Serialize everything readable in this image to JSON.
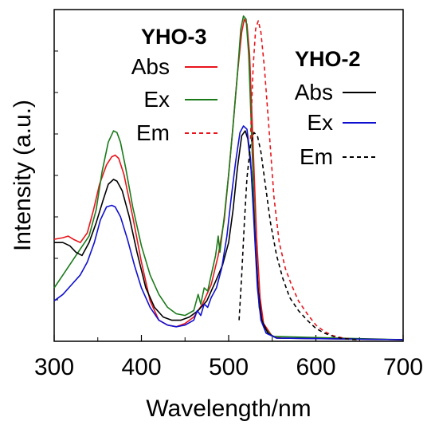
{
  "chart_data": {
    "type": "line",
    "xlabel": "Wavelength/nm",
    "ylabel": "Intensity (a.u.)",
    "xlim": [
      300,
      700
    ],
    "ylim": [
      0,
      1.0
    ],
    "x_ticks": [
      "300",
      "400",
      "500",
      "600",
      "700"
    ],
    "y_ticks_labeled": false,
    "grid": false,
    "legends": [
      {
        "title": "YHO-3",
        "entries": [
          {
            "label": "Abs",
            "color": "#e8141b",
            "dash": "solid"
          },
          {
            "label": "Ex",
            "color": "#1a7a1a",
            "dash": "solid"
          },
          {
            "label": "Em",
            "color": "#e8141b",
            "dash": "dashed"
          }
        ]
      },
      {
        "title": "YHO-2",
        "entries": [
          {
            "label": "Abs",
            "color": "#000000",
            "dash": "solid"
          },
          {
            "label": "Ex",
            "color": "#1010d0",
            "dash": "solid"
          },
          {
            "label": "Em",
            "color": "#000000",
            "dash": "dashed"
          }
        ]
      }
    ],
    "series": [
      {
        "group": "YHO-3",
        "kind": "Abs",
        "color": "#e8141b",
        "dash": "solid",
        "points": [
          [
            300,
            0.31
          ],
          [
            310,
            0.315
          ],
          [
            316,
            0.32
          ],
          [
            322,
            0.31
          ],
          [
            330,
            0.3
          ],
          [
            338,
            0.33
          ],
          [
            345,
            0.4
          ],
          [
            352,
            0.48
          ],
          [
            360,
            0.54
          ],
          [
            366,
            0.565
          ],
          [
            370,
            0.57
          ],
          [
            374,
            0.56
          ],
          [
            380,
            0.51
          ],
          [
            390,
            0.38
          ],
          [
            400,
            0.24
          ],
          [
            410,
            0.12
          ],
          [
            420,
            0.06
          ],
          [
            430,
            0.045
          ],
          [
            440,
            0.04
          ],
          [
            450,
            0.05
          ],
          [
            460,
            0.07
          ],
          [
            470,
            0.11
          ],
          [
            480,
            0.17
          ],
          [
            488,
            0.26
          ],
          [
            495,
            0.37
          ],
          [
            500,
            0.51
          ],
          [
            505,
            0.66
          ],
          [
            510,
            0.82
          ],
          [
            515,
            0.95
          ],
          [
            518,
            0.99
          ],
          [
            521,
            0.975
          ],
          [
            524,
            0.88
          ],
          [
            528,
            0.6
          ],
          [
            532,
            0.32
          ],
          [
            536,
            0.13
          ],
          [
            540,
            0.05
          ],
          [
            550,
            0.01
          ],
          [
            560,
            0.005
          ],
          [
            700,
            0.0
          ]
        ]
      },
      {
        "group": "YHO-3",
        "kind": "Ex",
        "color": "#1a7a1a",
        "dash": "solid",
        "points": [
          [
            300,
            0.16
          ],
          [
            310,
            0.2
          ],
          [
            320,
            0.24
          ],
          [
            330,
            0.28
          ],
          [
            340,
            0.32
          ],
          [
            348,
            0.4
          ],
          [
            355,
            0.52
          ],
          [
            362,
            0.61
          ],
          [
            368,
            0.645
          ],
          [
            372,
            0.64
          ],
          [
            376,
            0.61
          ],
          [
            382,
            0.53
          ],
          [
            390,
            0.41
          ],
          [
            400,
            0.29
          ],
          [
            410,
            0.2
          ],
          [
            420,
            0.14
          ],
          [
            430,
            0.1
          ],
          [
            440,
            0.08
          ],
          [
            450,
            0.075
          ],
          [
            460,
            0.09
          ],
          [
            465,
            0.14
          ],
          [
            468,
            0.11
          ],
          [
            472,
            0.16
          ],
          [
            476,
            0.15
          ],
          [
            480,
            0.2
          ],
          [
            485,
            0.26
          ],
          [
            488,
            0.32
          ],
          [
            490,
            0.27
          ],
          [
            495,
            0.38
          ],
          [
            500,
            0.51
          ],
          [
            505,
            0.66
          ],
          [
            510,
            0.82
          ],
          [
            514,
            0.96
          ],
          [
            517,
            1.0
          ],
          [
            520,
            0.99
          ],
          [
            523,
            0.88
          ],
          [
            527,
            0.58
          ],
          [
            531,
            0.28
          ],
          [
            535,
            0.1
          ],
          [
            540,
            0.04
          ],
          [
            550,
            0.01
          ],
          [
            700,
            0.0
          ]
        ]
      },
      {
        "group": "YHO-3",
        "kind": "Em",
        "color": "#e8141b",
        "dash": "dashed",
        "points": [
          [
            525,
            0.62
          ],
          [
            528,
            0.84
          ],
          [
            531,
            0.96
          ],
          [
            534,
            0.985
          ],
          [
            537,
            0.95
          ],
          [
            541,
            0.84
          ],
          [
            546,
            0.66
          ],
          [
            552,
            0.44
          ],
          [
            558,
            0.3
          ],
          [
            565,
            0.22
          ],
          [
            572,
            0.17
          ],
          [
            580,
            0.12
          ],
          [
            590,
            0.08
          ],
          [
            600,
            0.045
          ],
          [
            610,
            0.025
          ],
          [
            620,
            0.012
          ],
          [
            630,
            0.006
          ],
          [
            640,
            0.002
          ],
          [
            650,
            0.0
          ]
        ]
      },
      {
        "group": "YHO-2",
        "kind": "Abs",
        "color": "#000000",
        "dash": "solid",
        "points": [
          [
            300,
            0.3
          ],
          [
            310,
            0.3
          ],
          [
            318,
            0.29
          ],
          [
            325,
            0.27
          ],
          [
            332,
            0.26
          ],
          [
            340,
            0.3
          ],
          [
            348,
            0.36
          ],
          [
            356,
            0.43
          ],
          [
            362,
            0.48
          ],
          [
            368,
            0.495
          ],
          [
            372,
            0.49
          ],
          [
            378,
            0.46
          ],
          [
            386,
            0.38
          ],
          [
            395,
            0.27
          ],
          [
            405,
            0.16
          ],
          [
            415,
            0.1
          ],
          [
            425,
            0.07
          ],
          [
            435,
            0.06
          ],
          [
            445,
            0.06
          ],
          [
            455,
            0.07
          ],
          [
            465,
            0.09
          ],
          [
            475,
            0.12
          ],
          [
            485,
            0.18
          ],
          [
            493,
            0.23
          ],
          [
            500,
            0.3
          ],
          [
            505,
            0.4
          ],
          [
            510,
            0.53
          ],
          [
            515,
            0.63
          ],
          [
            519,
            0.645
          ],
          [
            522,
            0.62
          ],
          [
            526,
            0.52
          ],
          [
            530,
            0.33
          ],
          [
            534,
            0.15
          ],
          [
            538,
            0.06
          ],
          [
            545,
            0.02
          ],
          [
            555,
            0.005
          ],
          [
            700,
            0.0
          ]
        ]
      },
      {
        "group": "YHO-2",
        "kind": "Ex",
        "color": "#1010d0",
        "dash": "solid",
        "points": [
          [
            300,
            0.12
          ],
          [
            310,
            0.14
          ],
          [
            320,
            0.17
          ],
          [
            330,
            0.2
          ],
          [
            338,
            0.24
          ],
          [
            346,
            0.3
          ],
          [
            353,
            0.37
          ],
          [
            360,
            0.41
          ],
          [
            366,
            0.415
          ],
          [
            370,
            0.41
          ],
          [
            376,
            0.38
          ],
          [
            384,
            0.31
          ],
          [
            392,
            0.23
          ],
          [
            400,
            0.16
          ],
          [
            410,
            0.1
          ],
          [
            420,
            0.06
          ],
          [
            430,
            0.045
          ],
          [
            440,
            0.04
          ],
          [
            450,
            0.045
          ],
          [
            460,
            0.06
          ],
          [
            464,
            0.09
          ],
          [
            468,
            0.075
          ],
          [
            472,
            0.11
          ],
          [
            476,
            0.1
          ],
          [
            480,
            0.13
          ],
          [
            486,
            0.16
          ],
          [
            492,
            0.22
          ],
          [
            498,
            0.32
          ],
          [
            503,
            0.44
          ],
          [
            508,
            0.55
          ],
          [
            513,
            0.64
          ],
          [
            517,
            0.66
          ],
          [
            521,
            0.65
          ],
          [
            525,
            0.56
          ],
          [
            529,
            0.36
          ],
          [
            533,
            0.16
          ],
          [
            537,
            0.06
          ],
          [
            543,
            0.02
          ],
          [
            555,
            0.005
          ],
          [
            700,
            0.0
          ]
        ]
      },
      {
        "group": "YHO-2",
        "kind": "Em",
        "color": "#000000",
        "dash": "dashed",
        "points": [
          [
            512,
            0.06
          ],
          [
            515,
            0.2
          ],
          [
            518,
            0.36
          ],
          [
            521,
            0.5
          ],
          [
            525,
            0.6
          ],
          [
            529,
            0.64
          ],
          [
            533,
            0.63
          ],
          [
            537,
            0.58
          ],
          [
            542,
            0.48
          ],
          [
            548,
            0.36
          ],
          [
            555,
            0.26
          ],
          [
            562,
            0.19
          ],
          [
            570,
            0.13
          ],
          [
            580,
            0.09
          ],
          [
            590,
            0.06
          ],
          [
            600,
            0.035
          ],
          [
            610,
            0.02
          ],
          [
            620,
            0.01
          ],
          [
            630,
            0.004
          ],
          [
            640,
            0.001
          ],
          [
            650,
            0.0
          ]
        ]
      }
    ]
  }
}
